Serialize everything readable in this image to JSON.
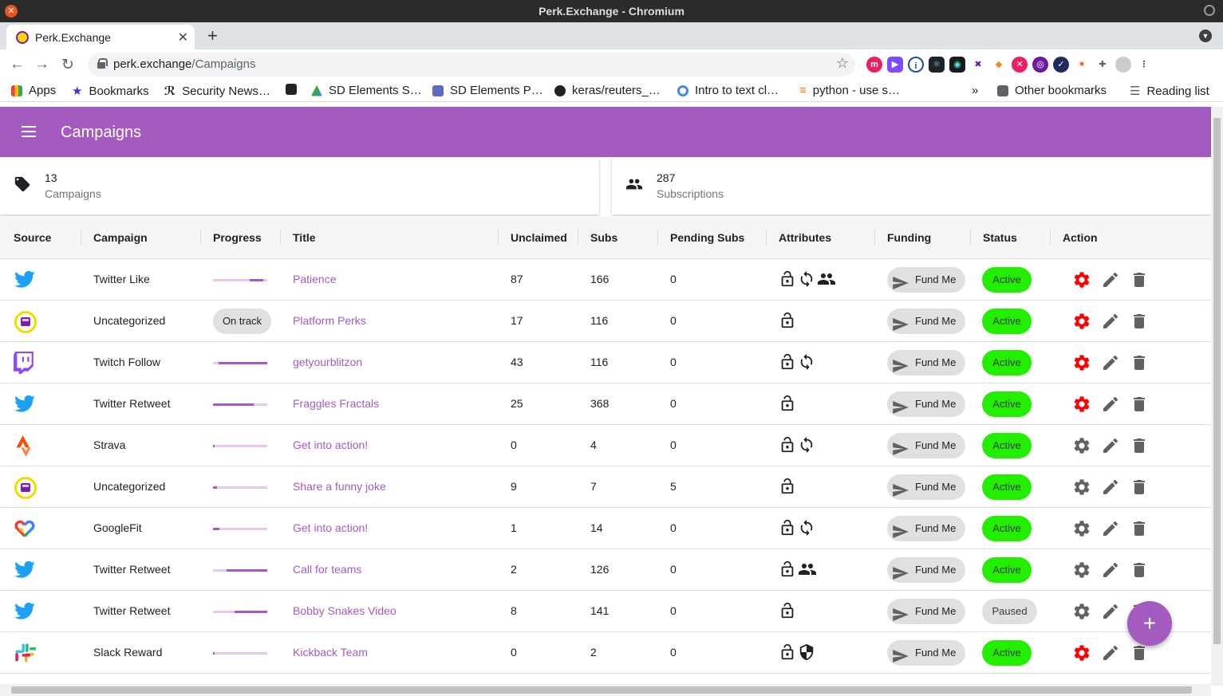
{
  "window": {
    "title": "Perk.Exchange - Chromium"
  },
  "tab": {
    "title": "Perk.Exchange"
  },
  "address": {
    "host": "perk.exchange",
    "path": "/Campaigns"
  },
  "bookmarks": {
    "apps": "Apps",
    "items": [
      "Bookmarks",
      "Security News…",
      "SD Elements S…",
      "SD Elements P…",
      "keras/reuters_…",
      "Intro to text cl…",
      "python - use s…"
    ],
    "overflow": "»",
    "other": "Other bookmarks",
    "reading": "Reading list"
  },
  "appbar": {
    "title": "Campaigns"
  },
  "stats": {
    "campaigns": {
      "value": "13",
      "label": "Campaigns"
    },
    "subscriptions": {
      "value": "287",
      "label": "Subscriptions"
    }
  },
  "table": {
    "headers": {
      "source": "Source",
      "campaign": "Campaign",
      "progress": "Progress",
      "title": "Title",
      "unclaimed": "Unclaimed",
      "subs": "Subs",
      "pending": "Pending Subs",
      "attributes": "Attributes",
      "funding": "Funding",
      "status": "Status",
      "action": "Action"
    },
    "fund_label": "Fund Me",
    "rows": [
      {
        "source": "twitter",
        "campaign": "Twitter Like",
        "progress": 0.25,
        "progress_start": 0.67,
        "title": "Patience",
        "unclaimed": "87",
        "subs": "166",
        "pending": "0",
        "attrs": [
          "lock",
          "sync",
          "group"
        ],
        "status": "Active",
        "settings_color": "#ff0000"
      },
      {
        "source": "perk",
        "campaign": "Uncategorized",
        "progress_chip": "On track",
        "title": "Platform Perks",
        "unclaimed": "17",
        "subs": "116",
        "pending": "0",
        "attrs": [
          "lock"
        ],
        "status": "Active",
        "settings_color": "#ff0000"
      },
      {
        "source": "twitch",
        "campaign": "Twitch Follow",
        "progress": 0.9,
        "progress_start": 0.1,
        "title": "getyourblitzon",
        "unclaimed": "43",
        "subs": "116",
        "pending": "0",
        "attrs": [
          "lock",
          "sync"
        ],
        "status": "Active",
        "settings_color": "#ff0000"
      },
      {
        "source": "twitter",
        "campaign": "Twitter Retweet",
        "progress": 0.75,
        "progress_start": 0.0,
        "title": "Fraggles Fractals",
        "unclaimed": "25",
        "subs": "368",
        "pending": "0",
        "attrs": [
          "lock"
        ],
        "status": "Active",
        "settings_color": "#ff0000"
      },
      {
        "source": "strava",
        "campaign": "Strava",
        "progress": 0.03,
        "progress_start": 0.0,
        "title": "Get into action!",
        "unclaimed": "0",
        "subs": "4",
        "pending": "0",
        "attrs": [
          "lock",
          "sync"
        ],
        "status": "Active",
        "settings_color": "#616161"
      },
      {
        "source": "perk",
        "campaign": "Uncategorized",
        "progress": 0.07,
        "progress_start": 0.0,
        "title": "Share a funny joke",
        "unclaimed": "9",
        "subs": "7",
        "pending": "5",
        "attrs": [
          "lock"
        ],
        "status": "Active",
        "settings_color": "#616161"
      },
      {
        "source": "googlefit",
        "campaign": "GoogleFit",
        "progress": 0.12,
        "progress_start": 0.0,
        "title": "Get into action!",
        "unclaimed": "1",
        "subs": "14",
        "pending": "0",
        "attrs": [
          "lock",
          "sync"
        ],
        "status": "Active",
        "settings_color": "#616161"
      },
      {
        "source": "twitter",
        "campaign": "Twitter Retweet",
        "progress": 0.75,
        "progress_start": 0.25,
        "title": "Call for teams",
        "unclaimed": "2",
        "subs": "126",
        "pending": "0",
        "attrs": [
          "lock",
          "group"
        ],
        "status": "Active",
        "settings_color": "#616161"
      },
      {
        "source": "twitter",
        "campaign": "Twitter Retweet",
        "progress": 0.6,
        "progress_start": 0.4,
        "title": "Bobby Snakes Video",
        "unclaimed": "8",
        "subs": "141",
        "pending": "0",
        "attrs": [
          "lock"
        ],
        "status": "Paused",
        "settings_color": "#616161"
      },
      {
        "source": "slack",
        "campaign": "Slack Reward",
        "progress": 0.03,
        "progress_start": 0.0,
        "title": "Kickback Team",
        "unclaimed": "0",
        "subs": "2",
        "pending": "0",
        "attrs": [
          "lock",
          "shield"
        ],
        "status": "Active",
        "settings_color": "#ff0000"
      }
    ]
  },
  "fab": {
    "label": "+"
  },
  "colors": {
    "accent": "#a35bbf",
    "active": "#22ee00",
    "settings_alert": "#ff0000"
  }
}
